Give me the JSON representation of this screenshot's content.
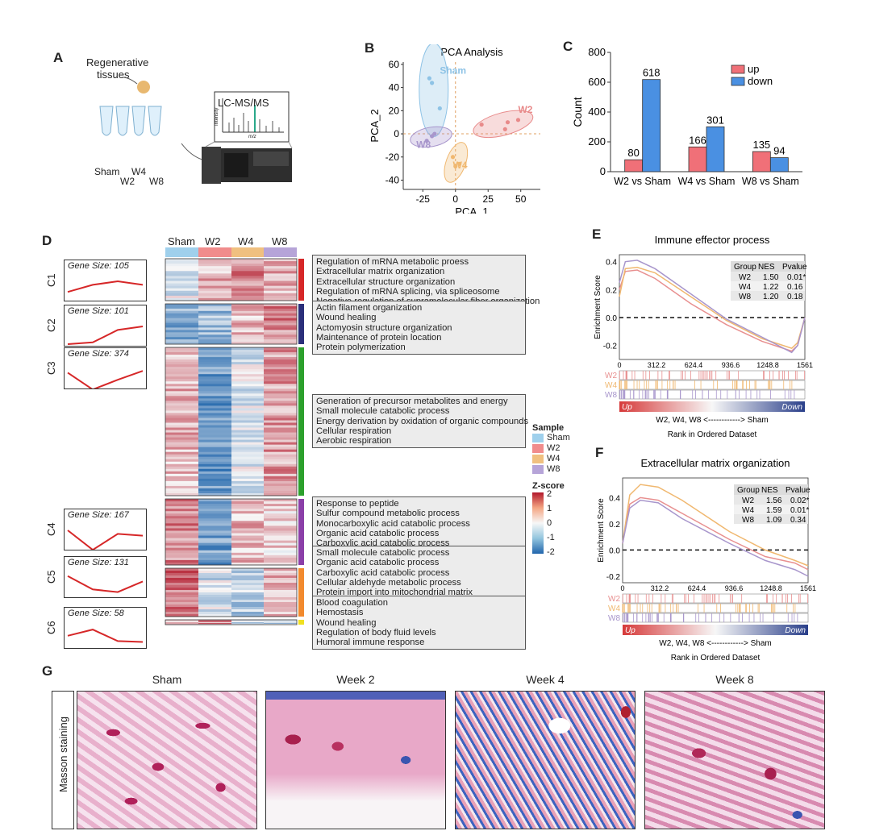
{
  "panels": {
    "A": "A",
    "B": "B",
    "C": "C",
    "D": "D",
    "E": "E",
    "F": "F",
    "G": "G"
  },
  "panelA": {
    "tissue_label": [
      "Regenerative",
      "tissues"
    ],
    "instrument": "LC-MS/MS",
    "tubes": [
      "Sham",
      "W2",
      "W4",
      "W8"
    ],
    "ms_ylabel": "Intensity",
    "ms_xlabel": "m/z"
  },
  "chart_data": [
    {
      "type": "scatter",
      "title": "PCA Analysis",
      "xlabel": "PCA_1",
      "ylabel": "PCA_2",
      "xticks": [
        -25,
        0,
        25,
        50
      ],
      "yticks": [
        -40,
        -20,
        0,
        20,
        40,
        60
      ],
      "xlim": [
        -40,
        65
      ],
      "ylim": [
        -48,
        62
      ],
      "series": [
        {
          "name": "Sham",
          "color": "#8ec3e6",
          "x": [
            -20,
            -18,
            -12
          ],
          "y": [
            48,
            44,
            22
          ]
        },
        {
          "name": "W2",
          "color": "#e88a8a",
          "x": [
            20,
            38,
            40,
            48
          ],
          "y": [
            8,
            4,
            10,
            12
          ]
        },
        {
          "name": "W4",
          "color": "#f0b870",
          "x": [
            -2,
            0,
            3
          ],
          "y": [
            -20,
            -28,
            -26
          ]
        },
        {
          "name": "W8",
          "color": "#a896cc",
          "x": [
            -22,
            -18,
            -16
          ],
          "y": [
            -6,
            -2,
            0
          ]
        }
      ]
    },
    {
      "type": "bar",
      "ylabel": "Count",
      "categories": [
        "W2 vs Sham",
        "W4 vs Sham",
        "W8 vs Sham"
      ],
      "ylim": [
        0,
        800
      ],
      "yticks": [
        0,
        200,
        400,
        600,
        800
      ],
      "series": [
        {
          "name": "up",
          "color": "#f07078",
          "values": [
            80,
            166,
            135
          ]
        },
        {
          "name": "down",
          "color": "#4a90e2",
          "values": [
            618,
            301,
            94
          ]
        }
      ],
      "legend": "top-right"
    },
    {
      "type": "line",
      "title": "Immune effector process",
      "ylabel": "Enrichment Score",
      "xlabel": "Rank in Ordered Dataset",
      "xticks": [
        "0",
        "312.2",
        "624.4",
        "936.6",
        "1248.8",
        "1561"
      ],
      "yticks": [
        "0.4",
        "0.2",
        "0.0",
        "-0.2"
      ],
      "ylim": [
        -0.3,
        0.45
      ],
      "table_head": [
        "Group",
        "NES",
        "Pvalue"
      ],
      "table_rows": [
        [
          "W2",
          "1.50",
          "0.01*"
        ],
        [
          "W4",
          "1.22",
          "0.16"
        ],
        [
          "W8",
          "1.20",
          "0.18"
        ]
      ],
      "tracks": [
        "W2",
        "W4",
        "W8"
      ],
      "bar_left": "Up",
      "bar_right": "Down",
      "axis_note": "W2, W4, W8 <------------> Sham",
      "series": [
        {
          "name": "W2",
          "color": "#e89090",
          "x": [
            0,
            50,
            150,
            300,
            600,
            900,
            1200,
            1450,
            1500,
            1561
          ],
          "y": [
            0.2,
            0.33,
            0.34,
            0.28,
            0.1,
            -0.05,
            -0.17,
            -0.24,
            -0.2,
            0.0
          ]
        },
        {
          "name": "W4",
          "color": "#f0b870",
          "x": [
            0,
            50,
            150,
            300,
            600,
            900,
            1200,
            1450,
            1500,
            1561
          ],
          "y": [
            0.15,
            0.35,
            0.36,
            0.32,
            0.15,
            -0.02,
            -0.15,
            -0.22,
            -0.18,
            0.0
          ]
        },
        {
          "name": "W8",
          "color": "#a896cc",
          "x": [
            0,
            50,
            150,
            300,
            600,
            900,
            1200,
            1450,
            1500,
            1561
          ],
          "y": [
            0.25,
            0.4,
            0.41,
            0.35,
            0.17,
            -0.01,
            -0.14,
            -0.25,
            -0.2,
            0.0
          ]
        }
      ]
    },
    {
      "type": "line",
      "title": "Extracellular matrix organization",
      "ylabel": "Enrichment Score",
      "xlabel": "Rank in Ordered Dataset",
      "xticks": [
        "0",
        "312.2",
        "624.4",
        "936.6",
        "1248.8",
        "1561"
      ],
      "yticks": [
        "0.4",
        "0.2",
        "0.0",
        "-0.2"
      ],
      "ylim": [
        -0.25,
        0.55
      ],
      "table_head": [
        "Group",
        "NES",
        "Pvalue"
      ],
      "table_rows": [
        [
          "W2",
          "1.56",
          "0.02*"
        ],
        [
          "W4",
          "1.59",
          "0.01*"
        ],
        [
          "W8",
          "1.09",
          "0.34"
        ]
      ],
      "tracks": [
        "W2",
        "W4",
        "W8"
      ],
      "bar_left": "Up",
      "bar_right": "Down",
      "axis_note": "W2, W4, W8 <------------> Sham",
      "series": [
        {
          "name": "W2",
          "color": "#e89090",
          "x": [
            0,
            60,
            150,
            300,
            500,
            900,
            1200,
            1450,
            1561
          ],
          "y": [
            0.05,
            0.35,
            0.4,
            0.38,
            0.28,
            0.08,
            -0.05,
            -0.1,
            -0.15
          ]
        },
        {
          "name": "W4",
          "color": "#f0b870",
          "x": [
            0,
            60,
            150,
            300,
            500,
            900,
            1200,
            1450,
            1561
          ],
          "y": [
            0.05,
            0.42,
            0.5,
            0.48,
            0.38,
            0.14,
            0.0,
            -0.08,
            -0.12
          ]
        },
        {
          "name": "W8",
          "color": "#a896cc",
          "x": [
            0,
            60,
            150,
            300,
            500,
            900,
            1200,
            1450,
            1561
          ],
          "y": [
            0.05,
            0.32,
            0.38,
            0.36,
            0.24,
            0.05,
            -0.08,
            -0.15,
            -0.2
          ]
        }
      ]
    }
  ],
  "heatmap": {
    "columns": [
      "Sham",
      "W2",
      "W4",
      "W8"
    ],
    "col_colors": [
      "#9fd0ec",
      "#f08c8c",
      "#f0c080",
      "#b6a4d8"
    ],
    "legend_title": "Sample",
    "legend_items": [
      "Sham",
      "W2",
      "W4",
      "W8"
    ],
    "zscore_title": "Z-score",
    "zscore_ticks": [
      "2",
      "1",
      "0",
      "-1",
      "-2"
    ],
    "clusters": [
      {
        "name": "C1",
        "gene_size": "Gene Size: 105",
        "bar": "#d62728",
        "pattern": [
          -0.2,
          0.6,
          1.0,
          0.6
        ],
        "terms": [
          "Regulation of mRNA metabolic proess",
          "Extracellular matrix organization",
          "Extracellular structure organization",
          "Regulation of mRNA splicing, via spliceosome",
          "Negative regulation of supramolecular fiber organization"
        ]
      },
      {
        "name": "C2",
        "gene_size": "Gene Size: 101",
        "bar": "#2b2f7a",
        "pattern": [
          -1.0,
          -0.8,
          0.6,
          1.0
        ],
        "terms": [
          "Actin filament organization",
          "Wound healing",
          "Actomyosin structure organization",
          "Maintenance of protein location",
          "Protein polymerization"
        ]
      },
      {
        "name": "C3",
        "gene_size": "Gene Size: 374",
        "bar": "#2ca02c",
        "pattern": [
          0.6,
          -1.3,
          -0.2,
          0.8
        ],
        "terms": [
          "Generation of precursor metabolites and energy",
          "Small molecule catabolic process",
          "Energy derivation by oxidation of organic compounds",
          "Cellular respiration",
          "Aerobic respiration"
        ]
      },
      {
        "name": "C4",
        "gene_size": "Gene Size: 167",
        "bar": "#8b3fa8",
        "pattern": [
          1.0,
          -1.2,
          0.6,
          0.4
        ],
        "terms": [
          "Response to peptide",
          "Sulfur compound metabolic process",
          "Monocarboxylic acid catabolic process",
          "Organic acid catabolic process",
          "Carboxylic acid catabolic process"
        ]
      },
      {
        "name": "C5",
        "gene_size": "Gene Size: 131",
        "bar": "#f28a2e",
        "pattern": [
          1.2,
          -0.3,
          -0.6,
          0.6
        ],
        "terms": [
          "Small molecule catabolic process",
          "Organic acid catabolic process",
          "Carboxylic acid catabolic process",
          "Cellular aldehyde metabolic process",
          "Protein import into mitochondrial matrix"
        ]
      },
      {
        "name": "C6",
        "gene_size": "Gene Size: 58",
        "bar": "#f0e020",
        "pattern": [
          0.2,
          0.9,
          -0.4,
          -0.5
        ],
        "terms": [
          "Blood coagulation",
          "Hemostasis",
          "Wound healing",
          "Regulation of body fluid levels",
          "Humoral immune response"
        ]
      }
    ]
  },
  "panelG": {
    "row_label": "Masson staining",
    "titles": [
      "Sham",
      "Week 2",
      "Week 4",
      "Week 8"
    ]
  }
}
